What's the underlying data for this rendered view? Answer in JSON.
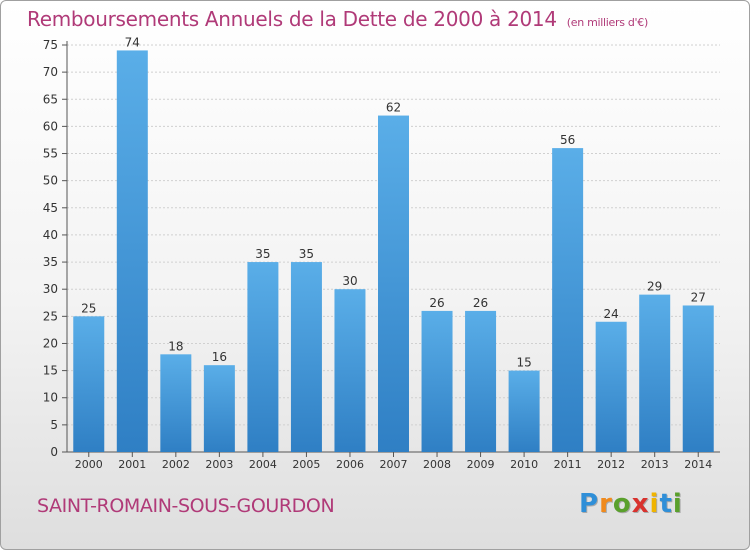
{
  "title": "Remboursements Annuels de la Dette de 2000 à 2014",
  "title_unit": "(en milliers d'€)",
  "commune": "SAINT-ROMAIN-SOUS-GOURDON",
  "logo": {
    "text": "Proxiti",
    "letter_colors": [
      "#2f8fd8",
      "#f08a1c",
      "#5aa02c",
      "#d8322e",
      "#f0b400",
      "#2f8fd8",
      "#5aa02c"
    ]
  },
  "colors": {
    "accent": "#b03a78",
    "bar_light": "#5aaee8",
    "bar_dark": "#2f7fc4",
    "axis": "#555555",
    "grid": "#d0d0d0"
  },
  "chart_data": {
    "type": "bar",
    "categories": [
      "2000",
      "2001",
      "2002",
      "2003",
      "2004",
      "2005",
      "2006",
      "2007",
      "2008",
      "2009",
      "2010",
      "2011",
      "2012",
      "2013",
      "2014"
    ],
    "values": [
      25,
      74,
      18,
      16,
      35,
      35,
      30,
      62,
      26,
      26,
      15,
      56,
      24,
      29,
      27
    ],
    "title": "Remboursements Annuels de la Dette de 2000 à 2014",
    "xlabel": "",
    "ylabel": "",
    "ylim": [
      0,
      75
    ],
    "yticks": [
      0,
      5,
      10,
      15,
      20,
      25,
      30,
      35,
      40,
      45,
      50,
      55,
      60,
      65,
      70,
      75
    ],
    "grid": true,
    "data_labels": true
  }
}
